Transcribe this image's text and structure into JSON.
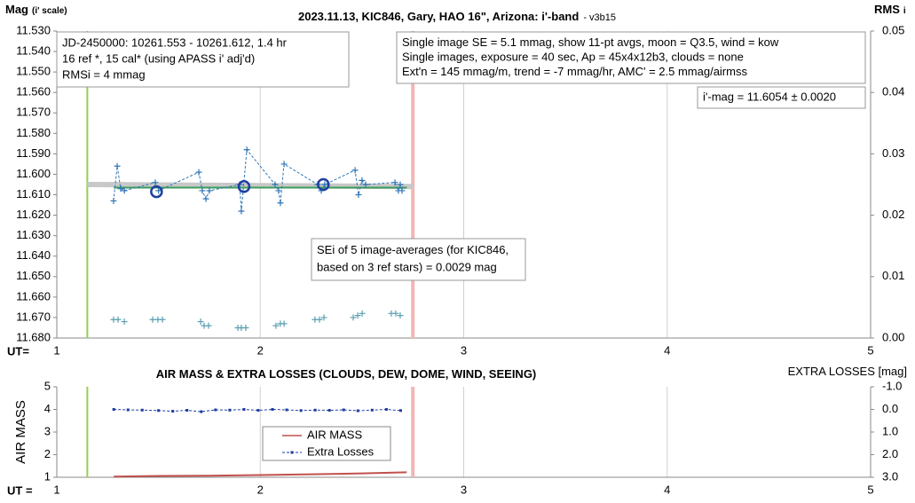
{
  "chart_data": [
    {
      "type": "scatter",
      "title": "2023.11.13, KIC846, Gary, HAO 16\", Arizona: i'-band",
      "subtitle": "- v3b15",
      "ylabel": "Mag",
      "ylabel_note": "(i' scale)",
      "y2label": "RMS",
      "y2label_note": "i",
      "xlabel": "UT=",
      "xlim": [
        1,
        5
      ],
      "xticks": [
        1,
        2,
        3,
        4,
        5
      ],
      "ylim": [
        11.53,
        11.68
      ],
      "y_inverted": true,
      "yticks": [
        {
          "value": 11.53,
          "label": "11.530"
        },
        {
          "value": 11.54,
          "label": "11.540"
        },
        {
          "value": 11.55,
          "label": "11.550"
        },
        {
          "value": 11.56,
          "label": "11.560"
        },
        {
          "value": 11.57,
          "label": "11.570"
        },
        {
          "value": 11.58,
          "label": "11.580"
        },
        {
          "value": 11.59,
          "label": "11.590"
        },
        {
          "value": 11.6,
          "label": "11.600"
        },
        {
          "value": 11.61,
          "label": "11.610"
        },
        {
          "value": 11.62,
          "label": "11.620"
        },
        {
          "value": 11.63,
          "label": "11.630"
        },
        {
          "value": 11.64,
          "label": "11.640"
        },
        {
          "value": 11.65,
          "label": "11.650"
        },
        {
          "value": 11.66,
          "label": "11.660"
        },
        {
          "value": 11.67,
          "label": "11.670"
        },
        {
          "value": 11.68,
          "label": "11.680"
        }
      ],
      "y2lim": [
        0,
        0.05
      ],
      "y2ticks": [
        {
          "value": 0,
          "label": "0.00"
        },
        0.01,
        0.02,
        0.03,
        0.04,
        0.05
      ],
      "grid": "x",
      "vlines": [
        {
          "x": 1.15,
          "color": "#92d050"
        },
        {
          "x": 2.75,
          "color": "#f4b6b6"
        }
      ],
      "series": [
        {
          "color": "#c8c8c8",
          "style": "thick",
          "x": [
            1.15,
            2.75
          ],
          "values": [
            11.605,
            11.606
          ]
        },
        {
          "color": "#3c9d5d",
          "style": "solid",
          "x": [
            1.28,
            2.72
          ],
          "values": [
            11.6065,
            11.6065
          ]
        },
        {
          "color": "#2e75b6",
          "style": "dashed",
          "marker": "plus",
          "x": [
            1.279,
            1.297,
            1.314,
            1.332,
            1.484,
            1.5,
            1.698,
            1.715,
            1.733,
            1.75,
            1.899,
            1.907,
            1.934,
            2.073,
            2.09,
            2.099,
            2.117,
            2.282,
            2.3,
            2.317,
            2.466,
            2.483,
            2.5,
            2.518,
            2.662,
            2.679,
            2.688,
            2.697
          ],
          "values": [
            11.613,
            11.596,
            11.607,
            11.608,
            11.604,
            11.608,
            11.599,
            11.608,
            11.612,
            11.608,
            11.605,
            11.618,
            11.588,
            11.605,
            11.608,
            11.614,
            11.595,
            11.605,
            11.608,
            11.605,
            11.598,
            11.61,
            11.603,
            11.605,
            11.604,
            11.608,
            11.605,
            11.608
          ]
        },
        {
          "color": "#1f3fa0",
          "marker": "circle",
          "x": [
            1.49,
            1.92,
            2.31
          ],
          "values": [
            11.6085,
            11.606,
            11.605
          ]
        },
        {
          "color": "#5b9fb0",
          "marker": "plus",
          "x": [
            1.279,
            1.301,
            1.332,
            1.471,
            1.497,
            1.519,
            1.707,
            1.724,
            1.746,
            1.89,
            1.907,
            1.929,
            2.077,
            2.099,
            2.117,
            2.269,
            2.291,
            2.313,
            2.457,
            2.479,
            2.501,
            2.644,
            2.666,
            2.688
          ],
          "values": [
            11.671,
            11.671,
            11.672,
            11.671,
            11.671,
            11.671,
            11.672,
            11.674,
            11.674,
            11.675,
            11.675,
            11.675,
            11.674,
            11.673,
            11.673,
            11.671,
            11.671,
            11.67,
            11.67,
            11.669,
            11.668,
            11.668,
            11.668,
            11.669
          ]
        }
      ],
      "annotations": [
        {
          "lines": [
            "JD-2450000: 10261.553 - 10261.612, 1.4  hr",
            "16 ref *, 15 cal* (using APASS i' adj'd)",
            "RMSi = 4 mmag"
          ]
        },
        {
          "lines": [
            "Single image SE = 5.1 mmag, show 11-pt avgs, moon = Q3.5, wind = kow",
            "Single images, exposure = 40 sec, Ap = 45x4x12b3, clouds = none",
            "Ext'n = 145 mmag/m, trend = -7 mmag/hr, AMC' = 2.5 mmag/airmss"
          ]
        },
        {
          "lines": [
            "i'-mag = 11.6054 ± 0.0020"
          ]
        },
        {
          "lines": [
            "SEi of 5 image-averages (for KIC846,",
            "based on 3 ref stars) = 0.0029 mag"
          ]
        }
      ]
    },
    {
      "type": "line",
      "title": "AIR MASS & EXTRA LOSSES (CLOUDS, DEW, DOME, WIND, SEEING)",
      "ylabel": "AIR MASS",
      "y2label": "EXTRA LOSSES [mag]",
      "xlabel": "UT =",
      "xlim": [
        1,
        5
      ],
      "xticks": [
        1,
        2,
        3,
        4,
        5
      ],
      "ylim": [
        1,
        5
      ],
      "yticks": [
        1,
        2,
        3,
        4,
        5
      ],
      "y2lim": [
        -1,
        3
      ],
      "y2_inverted": true,
      "y2ticks": [
        {
          "value": -1,
          "label": "-1.0"
        },
        {
          "value": 0,
          "label": "0.0"
        },
        {
          "value": 1,
          "label": "1.0"
        },
        {
          "value": 2,
          "label": "2.0"
        },
        {
          "value": 3,
          "label": "3.0"
        }
      ],
      "grid": "x",
      "legend": "center",
      "vlines": [
        {
          "x": 1.15,
          "color": "#92d050"
        },
        {
          "x": 2.75,
          "color": "#f4b6b6"
        }
      ],
      "series": [
        {
          "name": "AIR MASS",
          "color": "#c0504d",
          "style": "solid",
          "x": [
            1.28,
            1.5,
            1.75,
            2.0,
            2.25,
            2.5,
            2.72
          ],
          "values": [
            1.03,
            1.06,
            1.07,
            1.1,
            1.13,
            1.17,
            1.22
          ]
        },
        {
          "name": "Extra Losses",
          "color": "#1f3da0",
          "style": "dashed",
          "marker": "square",
          "axis": "y2",
          "x": [
            1.28,
            1.35,
            1.42,
            1.5,
            1.57,
            1.64,
            1.71,
            1.78,
            1.85,
            1.92,
            1.99,
            2.06,
            2.13,
            2.2,
            2.27,
            2.34,
            2.41,
            2.48,
            2.55,
            2.62,
            2.69
          ],
          "values": [
            0.0,
            0.02,
            0.03,
            0.05,
            0.08,
            0.04,
            0.1,
            0.02,
            0.03,
            0.0,
            0.04,
            0.0,
            0.02,
            0.05,
            0.03,
            0.04,
            0.02,
            0.06,
            0.03,
            0.0,
            0.05
          ]
        }
      ]
    }
  ]
}
